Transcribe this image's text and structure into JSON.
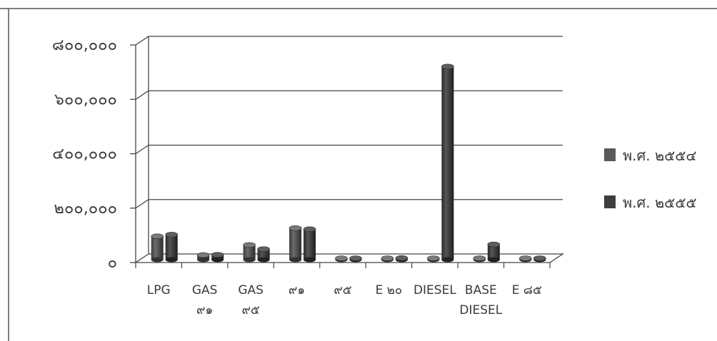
{
  "chart_data": {
    "type": "bar",
    "style": "3d-cylinder",
    "categories": [
      [
        "LPG"
      ],
      [
        "GAS",
        "๙๑"
      ],
      [
        "GAS",
        "๙๕"
      ],
      [
        "๙๑"
      ],
      [
        "๙๕"
      ],
      [
        "E ๒๐"
      ],
      [
        "DIESEL"
      ],
      [
        "BASE",
        "DIESEL"
      ],
      [
        "E ๘๕"
      ]
    ],
    "series": [
      {
        "name": "พ.ศ. ๒๕๕๔",
        "color": "#5a5a5a",
        "values": [
          86000,
          17000,
          54000,
          116000,
          1500,
          5000,
          2000,
          2000,
          1000
        ]
      },
      {
        "name": "พ.ศ. ๒๕๕๕",
        "color": "#3e3e3e",
        "values": [
          92000,
          18000,
          39000,
          112000,
          1500,
          6000,
          710000,
          56000,
          1000
        ]
      }
    ],
    "y_ticks": [
      {
        "value": 0,
        "label": "๐"
      },
      {
        "value": 200000,
        "label": "๒๐๐,๐๐๐"
      },
      {
        "value": 400000,
        "label": "๔๐๐,๐๐๐"
      },
      {
        "value": 600000,
        "label": "๖๐๐,๐๐๐"
      },
      {
        "value": 800000,
        "label": "๘๐๐,๐๐๐"
      }
    ],
    "ylim": [
      0,
      800000
    ],
    "grid": true,
    "legend_position": "right",
    "title": "",
    "xlabel": "",
    "ylabel": ""
  }
}
